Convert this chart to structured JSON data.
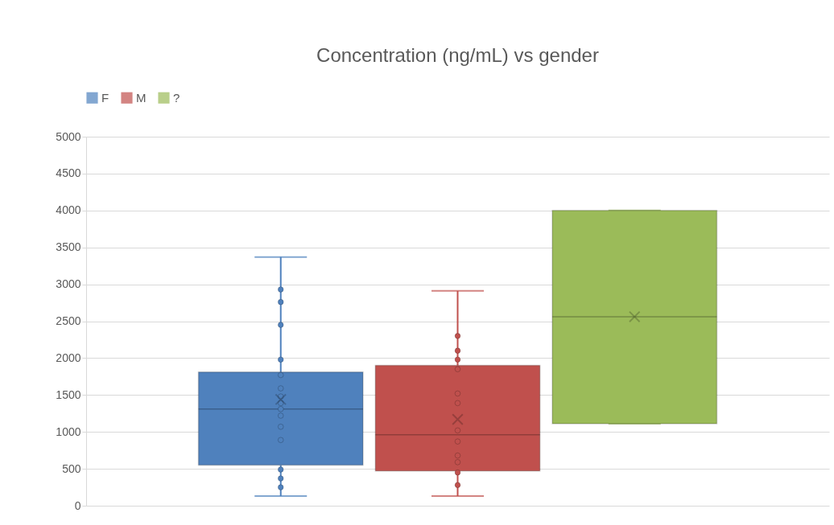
{
  "chart_data": {
    "type": "box",
    "title": "Concentration (ng/mL) vs gender",
    "categories": [
      null
    ],
    "ylim": [
      0,
      5000
    ],
    "yticks": [
      0,
      500,
      1000,
      1500,
      2000,
      2500,
      3000,
      3500,
      4000,
      4500,
      5000
    ],
    "grid": "y",
    "legend": "top",
    "series": [
      {
        "name": "F",
        "color": "#4f81bd",
        "boxes": [
          {
            "low": 130,
            "q1": 550,
            "median": 1310,
            "q3": 1810,
            "high": 3370,
            "mean": 1440,
            "outliers": [
              2930,
              2760,
              2450,
              1980,
              1770,
              1590,
              1480,
              1390,
              1310,
              1220,
              1070,
              890,
              490,
              370,
              250
            ]
          }
        ]
      },
      {
        "name": "M",
        "color": "#c0504d",
        "boxes": [
          {
            "low": 130,
            "q1": 470,
            "median": 960,
            "q3": 1900,
            "high": 2910,
            "mean": 1170,
            "outliers": [
              2300,
              2100,
              1980,
              1850,
              1520,
              1390,
              1020,
              870,
              680,
              590,
              450,
              280
            ]
          }
        ]
      },
      {
        "name": "?",
        "color": "#9bbb59",
        "boxes": [
          {
            "low": 1110,
            "q1": 1110,
            "median": 2560,
            "q3": 4000,
            "high": 4000,
            "mean": 2560
          }
        ]
      }
    ]
  }
}
